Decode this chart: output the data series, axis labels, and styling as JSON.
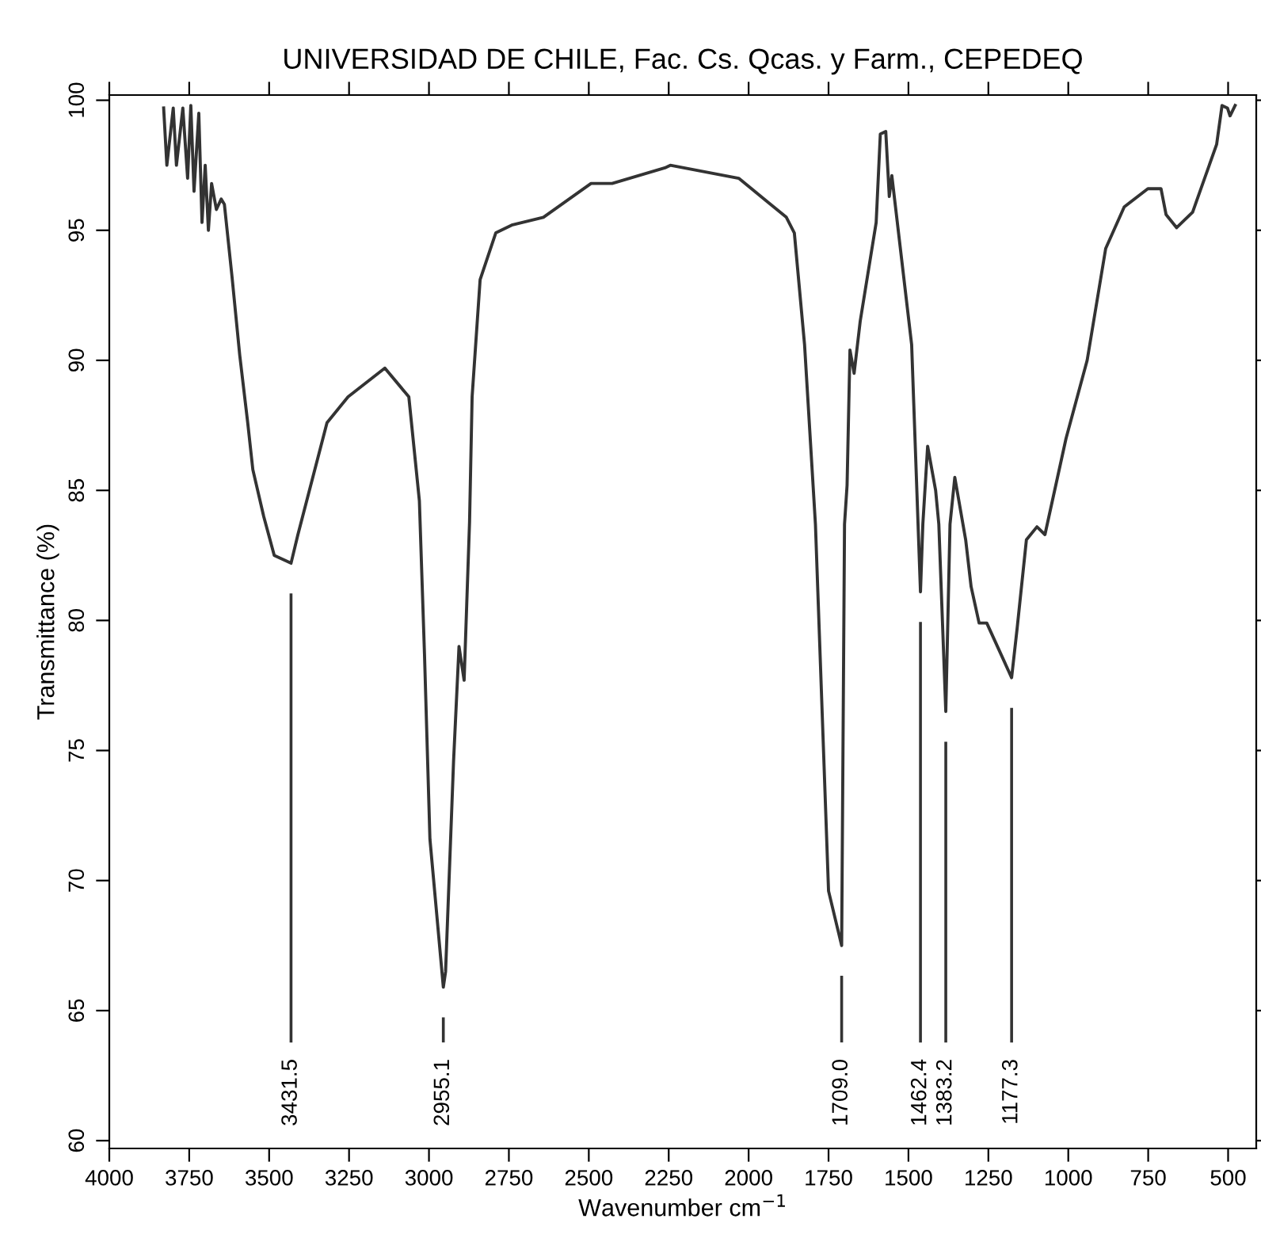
{
  "chart_data": {
    "type": "line",
    "title": "UNIVERSIDAD DE CHILE, Fac. Cs. Qcas. y Farm., CEPEDEQ",
    "xlabel": "Wavenumber cm$^{−1}$",
    "ylabel": "Transmittance (%)",
    "series": [
      {
        "color": "#333333",
        "x": [
          3830,
          3820,
          3800,
          3790,
          3770,
          3755,
          3745,
          3735,
          3720,
          3710,
          3700,
          3690,
          3680,
          3665,
          3650,
          3640,
          3616,
          3592,
          3567,
          3551,
          3517,
          3484,
          3431.5,
          3410,
          3319,
          3253,
          3138,
          3063,
          3030,
          3014,
          2997,
          2955.1,
          2948,
          2923,
          2906,
          2890,
          2873,
          2865,
          2840,
          2791,
          2741,
          2642,
          2493,
          2427,
          2262,
          2245,
          2031,
          1882,
          1857,
          1825,
          1791,
          1750,
          1709.0,
          1700,
          1692,
          1683,
          1670,
          1651,
          1601,
          1588,
          1571,
          1560,
          1552,
          1490,
          1462.4,
          1455,
          1440,
          1415,
          1405,
          1383.2,
          1370,
          1355,
          1321,
          1304,
          1279,
          1255,
          1177.3,
          1160,
          1131,
          1098,
          1073,
          1007,
          941,
          883,
          825,
          751,
          710,
          694,
          661,
          611,
          536,
          519,
          502,
          494,
          478
        ],
        "values": [
          99.7,
          97.5,
          99.7,
          97.5,
          99.7,
          97.0,
          99.8,
          96.5,
          99.5,
          95.3,
          97.5,
          95.0,
          96.8,
          95.8,
          96.2,
          96.0,
          93.2,
          90.2,
          87.6,
          85.8,
          84.0,
          82.5,
          82.2,
          83.3,
          87.6,
          88.6,
          89.7,
          88.6,
          84.6,
          78.7,
          71.6,
          65.9,
          66.5,
          74.6,
          79.0,
          77.7,
          83.8,
          88.6,
          93.1,
          94.9,
          95.2,
          95.5,
          96.8,
          96.8,
          97.4,
          97.5,
          97.0,
          95.5,
          94.9,
          90.6,
          83.7,
          69.6,
          67.5,
          83.7,
          85.2,
          90.4,
          89.5,
          91.5,
          95.3,
          98.7,
          98.8,
          96.3,
          97.1,
          90.6,
          81.1,
          83.7,
          86.7,
          85.0,
          83.7,
          76.5,
          83.7,
          85.5,
          83.1,
          81.3,
          79.9,
          79.9,
          77.8,
          79.7,
          83.1,
          83.6,
          83.3,
          87.0,
          90.0,
          94.3,
          95.9,
          96.6,
          96.6,
          95.6,
          95.1,
          95.7,
          98.3,
          99.8,
          99.7,
          99.4,
          99.8
        ]
      }
    ],
    "ref_lines": [
      {
        "axis": "x",
        "value": 3431.5,
        "label": "3431.5"
      },
      {
        "axis": "x",
        "value": 2955.1,
        "label": "2955.1"
      },
      {
        "axis": "x",
        "value": 1709.0,
        "label": "1709.0"
      },
      {
        "axis": "x",
        "value": 1462.4,
        "label": "1462.4"
      },
      {
        "axis": "x",
        "value": 1383.2,
        "label": "1383.2"
      },
      {
        "axis": "x",
        "value": 1177.3,
        "label": "1177.3"
      }
    ],
    "xlim": [
      4000,
      412
    ],
    "ylim": [
      59.7,
      100.2
    ],
    "xticks": [
      4000,
      3750,
      3500,
      3250,
      3000,
      2750,
      2500,
      2250,
      2000,
      1750,
      1500,
      1250,
      1000,
      750,
      500
    ],
    "yticks": [
      60,
      65,
      70,
      75,
      80,
      85,
      90,
      95,
      100
    ],
    "grid": false,
    "legend": false,
    "marker": "none",
    "line_style": "solid"
  }
}
